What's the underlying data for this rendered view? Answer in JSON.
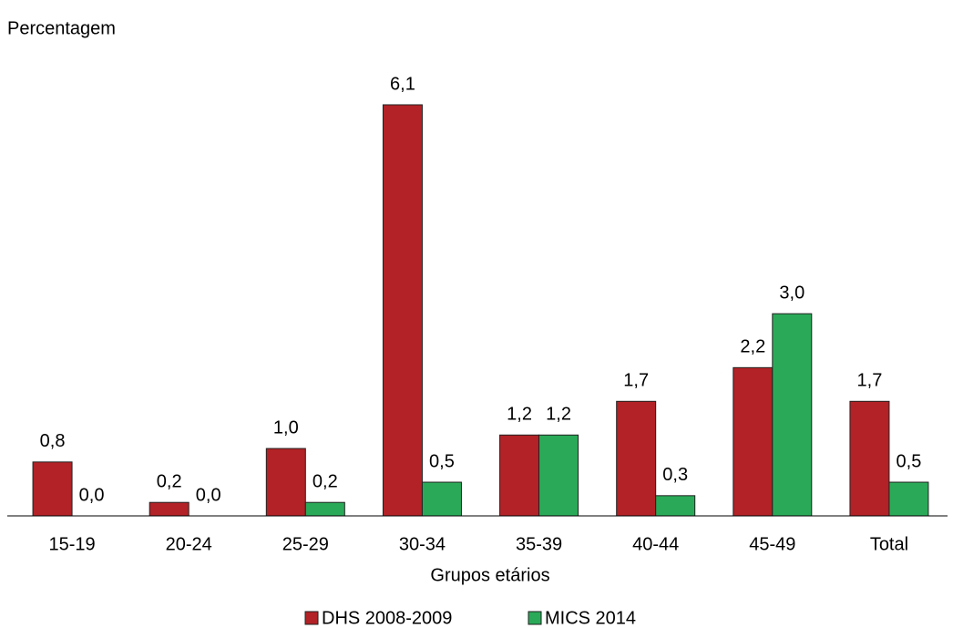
{
  "chart_data": {
    "type": "bar",
    "y_label": "Percentagem",
    "x_label": "Grupos etários",
    "categories": [
      "15-19",
      "20-24",
      "25-29",
      "30-34",
      "35-39",
      "40-44",
      "45-49",
      "Total"
    ],
    "series": [
      {
        "name": "DHS 2008-2009",
        "color": "#b22226",
        "values": [
          0.8,
          0.2,
          1.0,
          6.1,
          1.2,
          1.7,
          2.2,
          1.7
        ],
        "value_labels": [
          "0,8",
          "0,2",
          "1,0",
          "6,1",
          "1,2",
          "1,7",
          "2,2",
          "1,7"
        ]
      },
      {
        "name": "MICS 2014",
        "color": "#2aaa58",
        "values": [
          0.0,
          0.0,
          0.2,
          0.5,
          1.2,
          0.3,
          3.0,
          0.5
        ],
        "value_labels": [
          "0,0",
          "0,0",
          "0,2",
          "0,5",
          "1,2",
          "0,3",
          "3,0",
          "0,5"
        ]
      }
    ],
    "ylim": [
      0,
      6.6
    ],
    "legend": "bottom"
  }
}
